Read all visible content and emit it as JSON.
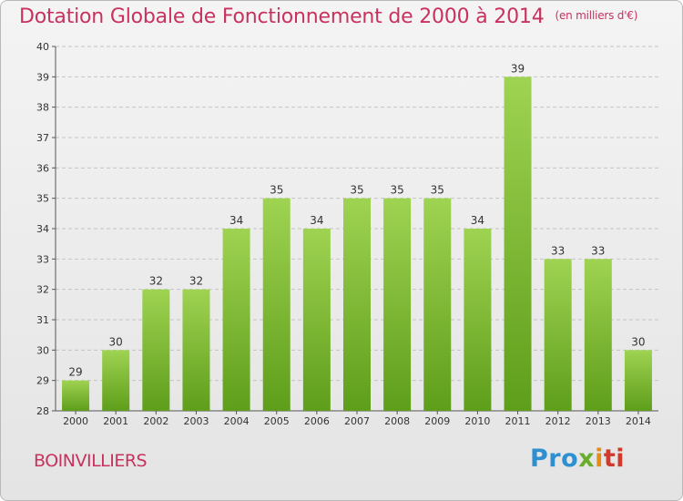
{
  "header": {
    "title": "Dotation Globale de Fonctionnement de 2000 à 2014",
    "unit": "(en milliers d'€)"
  },
  "footer": {
    "commune": "BOINVILLIERS",
    "logo": [
      "Pro",
      "x",
      "i",
      "ti"
    ]
  },
  "colors": {
    "title": "#c8325f",
    "bar_top": "#9fd352",
    "bar_bottom": "#5e9e1a",
    "grid": "#c4c4c4"
  },
  "chart_data": {
    "type": "bar",
    "title": "Dotation Globale de Fonctionnement de 2000 à 2014",
    "ylabel": "(en milliers d'€)",
    "xlabel": "",
    "categories": [
      "2000",
      "2001",
      "2002",
      "2003",
      "2004",
      "2005",
      "2006",
      "2007",
      "2008",
      "2009",
      "2010",
      "2011",
      "2012",
      "2013",
      "2014"
    ],
    "values": [
      29,
      30,
      32,
      32,
      34,
      35,
      34,
      35,
      35,
      35,
      34,
      39,
      33,
      33,
      30
    ],
    "ylim": [
      28,
      40
    ],
    "yticks": [
      28,
      29,
      30,
      31,
      32,
      33,
      34,
      35,
      36,
      37,
      38,
      39,
      40
    ],
    "grid": true,
    "legend": "none"
  }
}
